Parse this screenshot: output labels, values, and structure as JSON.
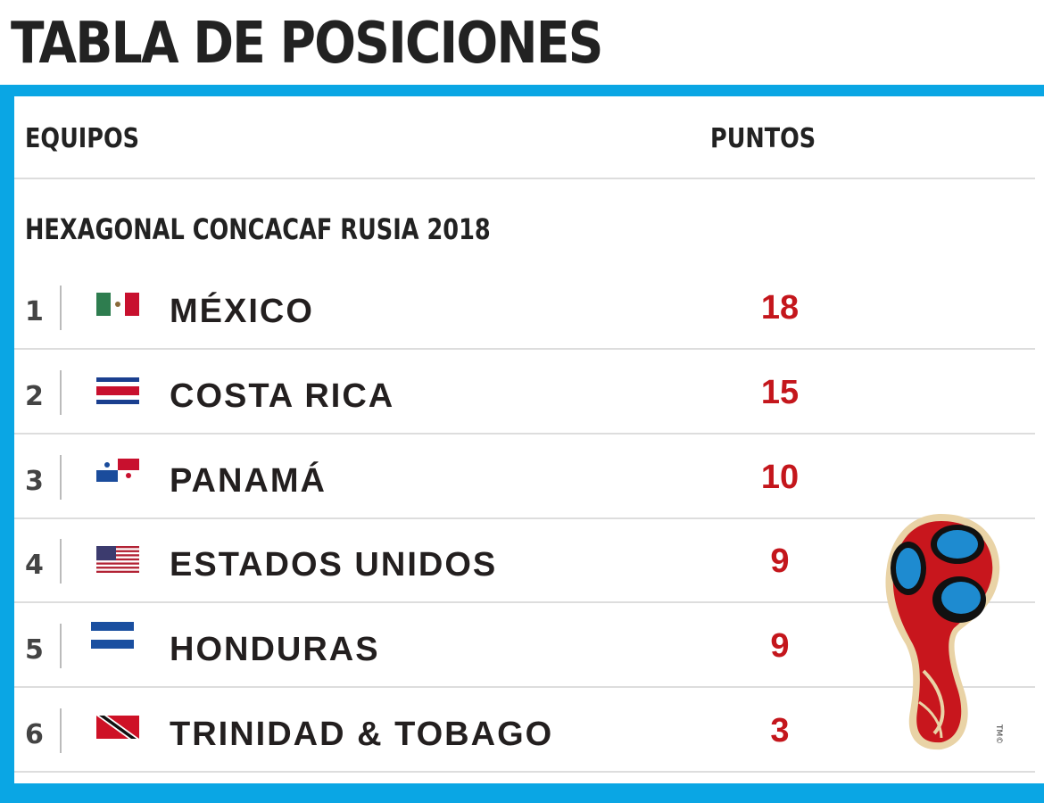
{
  "title": "TABLA DE POSICIONES",
  "header": {
    "teams": "EQUIPOS",
    "points": "PUNTOS"
  },
  "subtitle": "HEXAGONAL CONCACAF RUSIA 2018",
  "colors": {
    "accent": "#0aa6e4",
    "points": "#c4161c"
  },
  "rows": [
    {
      "pos": "1",
      "team": "MÉXICO",
      "points": "18",
      "flag": "mexico-flag-icon"
    },
    {
      "pos": "2",
      "team": "COSTA RICA",
      "points": "15",
      "flag": "costa-rica-flag-icon"
    },
    {
      "pos": "3",
      "team": "PANAMÁ",
      "points": "10",
      "flag": "panama-flag-icon"
    },
    {
      "pos": "4",
      "team": "ESTADOS UNIDOS",
      "points": "9",
      "flag": "usa-flag-icon"
    },
    {
      "pos": "5",
      "team": "HONDURAS",
      "points": "9",
      "flag": "honduras-flag-icon"
    },
    {
      "pos": "6",
      "team": "TRINIDAD & TOBAGO",
      "points": "3",
      "flag": "trinidad-tobago-flag-icon"
    }
  ],
  "logo": {
    "name": "world-cup-2018-logo",
    "mark": "TM©"
  }
}
